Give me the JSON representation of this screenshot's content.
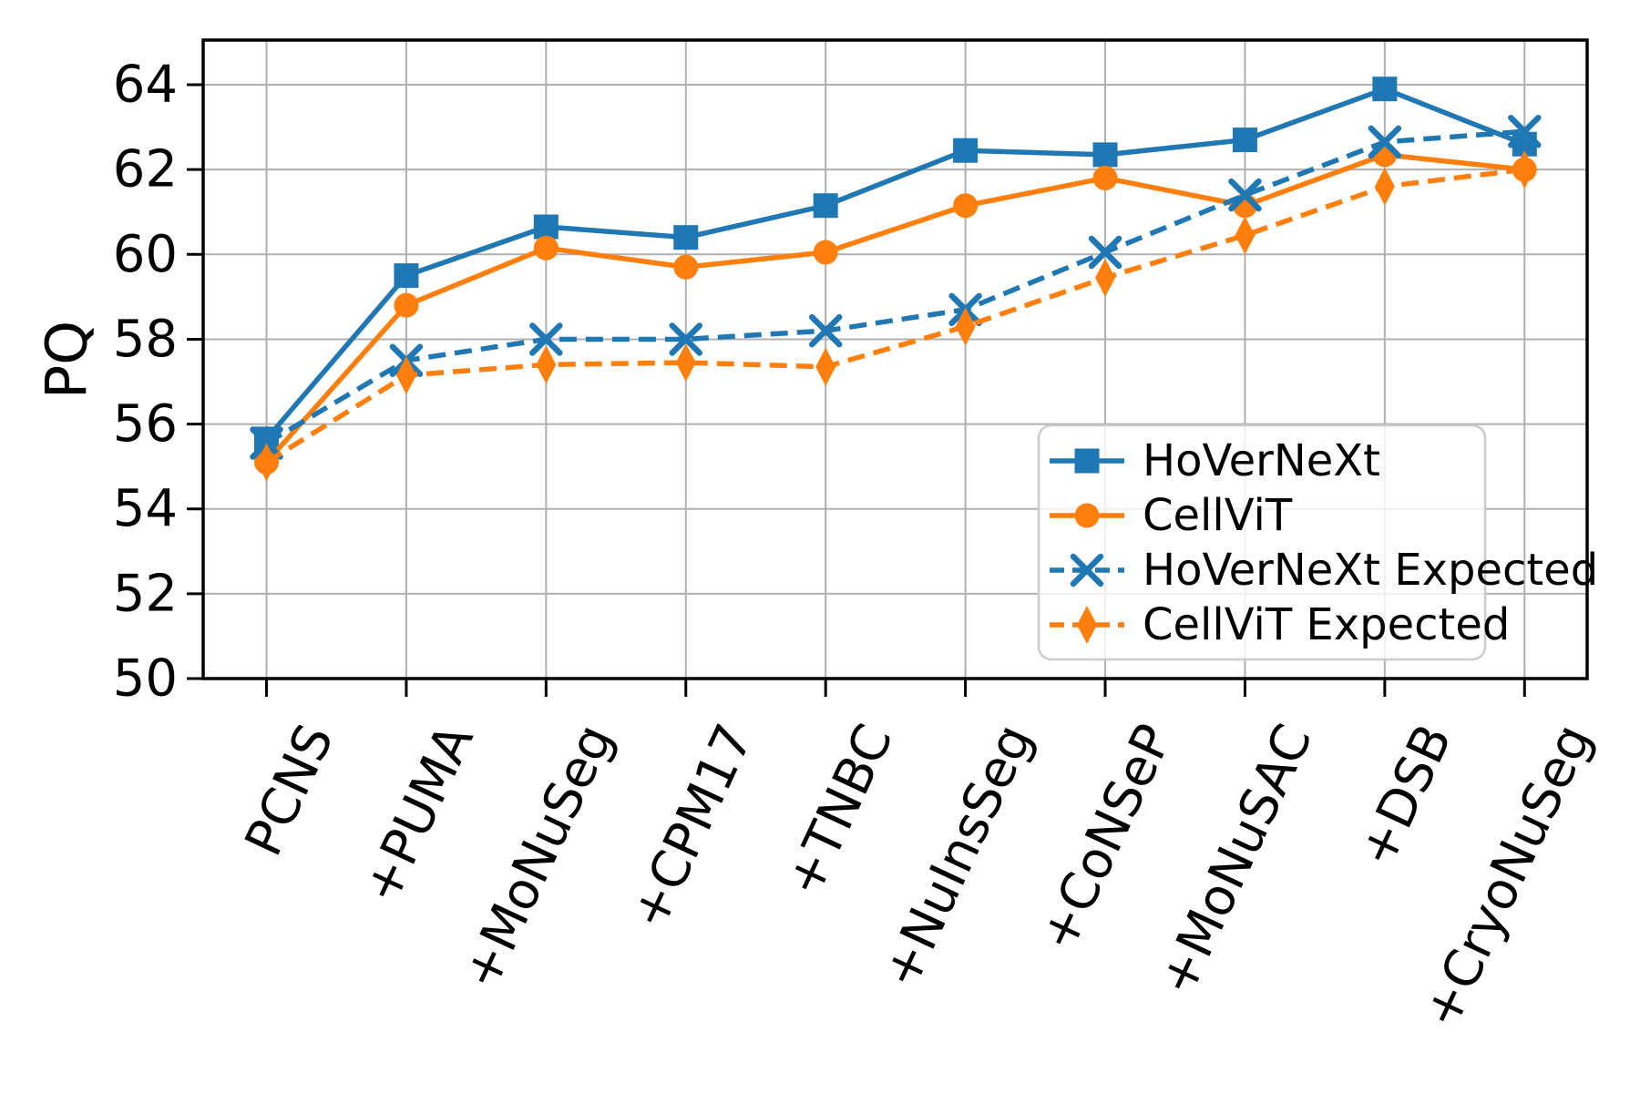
{
  "figure": {
    "background": "#ffffff"
  },
  "chart_data": {
    "type": "line",
    "title": "",
    "xlabel": "",
    "ylabel": "PQ",
    "categories": [
      "PCNS",
      "+PUMA",
      "+MoNuSeg",
      "+CPM17",
      "+TNBC",
      "+NuInsSeg",
      "+CoNSeP",
      "+MoNuSAC",
      "+DSB",
      "+CryoNuSeg"
    ],
    "yticks": [
      50,
      52,
      54,
      56,
      58,
      60,
      62,
      64
    ],
    "ylim": [
      50,
      65.05
    ],
    "grid": true,
    "legend_position": "lower right",
    "colors": {
      "blue": "#1f77b4",
      "orange": "#ff7f0e",
      "grid": "#b0b0b0",
      "spine": "#000000",
      "text": "#000000",
      "legend_border": "#cccccc",
      "legend_bg": "rgba(255,255,255,0.8)"
    },
    "series": [
      {
        "name": "HoVerNeXt",
        "color_key": "blue",
        "line": "solid",
        "marker": "square",
        "values": [
          55.65,
          59.5,
          60.65,
          60.4,
          61.15,
          62.45,
          62.35,
          62.7,
          63.9,
          62.6
        ]
      },
      {
        "name": "CellViT",
        "color_key": "orange",
        "line": "solid",
        "marker": "circle",
        "values": [
          55.1,
          58.8,
          60.15,
          59.7,
          60.05,
          61.15,
          61.8,
          61.15,
          62.35,
          62.0
        ]
      },
      {
        "name": "HoVerNeXt Expected",
        "color_key": "blue",
        "line": "dashed",
        "marker": "x",
        "values": [
          55.55,
          57.5,
          58.0,
          58.0,
          58.2,
          58.7,
          60.05,
          61.4,
          62.65,
          62.9
        ]
      },
      {
        "name": "CellViT Expected",
        "color_key": "orange",
        "line": "dashed",
        "marker": "diamond",
        "values": [
          55.1,
          57.15,
          57.4,
          57.45,
          57.35,
          58.3,
          59.45,
          60.45,
          61.6,
          62.0
        ]
      }
    ]
  }
}
